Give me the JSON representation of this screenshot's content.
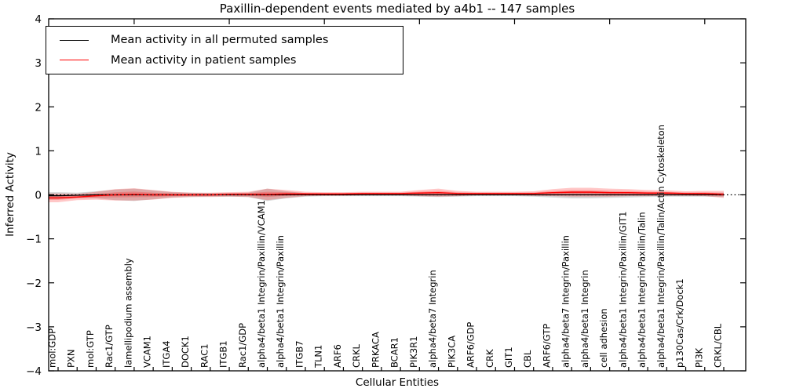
{
  "chart_data": {
    "type": "line",
    "title": "Paxillin-dependent events mediated by a4b1 -- 147 samples",
    "xlabel": "Cellular Entities",
    "ylabel": "Inferred Activity",
    "ylim": [
      -4,
      4
    ],
    "yticks": [
      4,
      3,
      2,
      1,
      0,
      -1,
      -2,
      -3,
      -4
    ],
    "grid": false,
    "legend_position": "upper left",
    "zero_line": "dotted",
    "categories": [
      "mol:GDP",
      "PXN",
      "mol:GTP",
      "Rac1/GTP",
      "lamellipodium assembly",
      "VCAM1",
      "ITGA4",
      "DOCK1",
      "RAC1",
      "ITGB1",
      "Rac1/GDP",
      "alpha4/beta1 Integrin/Paxillin/VCAM1",
      "alpha4/beta1 Integrin/Paxillin",
      "ITGB7",
      "TLN1",
      "ARF6",
      "CRKL",
      "PRKACA",
      "BCAR1",
      "PIK3R1",
      "alpha4/beta7 Integrin",
      "PIK3CA",
      "ARF6/GDP",
      "CRK",
      "GIT1",
      "CBL",
      "ARF6/GTP",
      "alpha4/beta7 Integrin/Paxillin",
      "alpha4/beta1 Integrin",
      "cell adhesion",
      "alpha4/beta1 Integrin/Paxillin/GIT1",
      "alpha4/beta1 Integrin/Paxillin/Talin",
      "alpha4/beta1 Integrin/Paxillin/Talin/Actin Cytoskeleton",
      "p130Cas/Crk/Dock1",
      "PI3K",
      "CRKL/CBL"
    ],
    "series": [
      {
        "name": "Mean activity in all permuted samples",
        "color": "#000000",
        "band_color": "rgba(0,0,0,0.16)",
        "values": [
          -0.02,
          -0.01,
          0.0,
          0.0,
          0.0,
          0.0,
          0.0,
          0.0,
          0.0,
          0.0,
          0.0,
          0.0,
          0.0,
          0.0,
          0.0,
          0.0,
          0.0,
          0.0,
          0.0,
          0.0,
          0.0,
          0.0,
          0.0,
          0.0,
          0.0,
          0.0,
          0.0,
          0.0,
          0.0,
          0.0,
          0.0,
          0.0,
          0.0,
          0.0,
          0.0,
          0.0
        ],
        "band": [
          0.08,
          0.06,
          0.08,
          0.12,
          0.14,
          0.1,
          0.06,
          0.05,
          0.04,
          0.04,
          0.05,
          0.14,
          0.08,
          0.04,
          0.03,
          0.03,
          0.03,
          0.03,
          0.03,
          0.04,
          0.05,
          0.04,
          0.03,
          0.03,
          0.03,
          0.04,
          0.06,
          0.08,
          0.08,
          0.07,
          0.06,
          0.05,
          0.04,
          0.04,
          0.04,
          0.05
        ]
      },
      {
        "name": "Mean activity in patient samples",
        "color": "#ff0000",
        "band_color": "rgba(255,0,0,0.22)",
        "values": [
          -0.07,
          -0.05,
          -0.02,
          0.0,
          0.01,
          0.0,
          0.0,
          0.0,
          0.0,
          0.01,
          0.01,
          0.01,
          0.02,
          0.02,
          0.02,
          0.02,
          0.03,
          0.03,
          0.03,
          0.04,
          0.05,
          0.03,
          0.03,
          0.03,
          0.03,
          0.03,
          0.05,
          0.06,
          0.06,
          0.05,
          0.05,
          0.04,
          0.04,
          0.03,
          0.03,
          0.01
        ],
        "band": [
          0.1,
          0.07,
          0.09,
          0.13,
          0.14,
          0.11,
          0.07,
          0.05,
          0.05,
          0.05,
          0.06,
          0.13,
          0.09,
          0.05,
          0.04,
          0.04,
          0.04,
          0.04,
          0.04,
          0.07,
          0.09,
          0.06,
          0.04,
          0.04,
          0.04,
          0.05,
          0.08,
          0.1,
          0.1,
          0.09,
          0.08,
          0.07,
          0.06,
          0.05,
          0.06,
          0.08
        ]
      }
    ]
  }
}
